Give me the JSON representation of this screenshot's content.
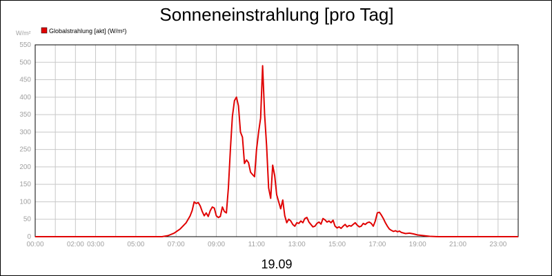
{
  "colors": {
    "series": "#e00000",
    "grid": "#c8c8c8",
    "axis": "#000000",
    "tick_text": "#a0a0a0",
    "title_text": "#000000"
  },
  "chart_data": {
    "type": "line",
    "title": "Sonneneinstrahlung [pro Tag]",
    "subtitle": "19.09",
    "ylabel": "W/m²",
    "xlabel": "",
    "legend": {
      "position": "top-left",
      "entries": [
        "Globalstrahlung [akt] (W/m²)"
      ]
    },
    "grid": true,
    "xlim": [
      0,
      24
    ],
    "ylim": [
      0,
      550
    ],
    "yticks": [
      0,
      50,
      100,
      150,
      200,
      250,
      300,
      350,
      400,
      450,
      500,
      550
    ],
    "xticks": [
      {
        "x": 0,
        "label": "00:00"
      },
      {
        "x": 2,
        "label": "02:00"
      },
      {
        "x": 3,
        "label": "03:00"
      },
      {
        "x": 5,
        "label": "05:00"
      },
      {
        "x": 7,
        "label": "07:00"
      },
      {
        "x": 9,
        "label": "09:00"
      },
      {
        "x": 11,
        "label": "11:00"
      },
      {
        "x": 13,
        "label": "13:00"
      },
      {
        "x": 15,
        "label": "15:00"
      },
      {
        "x": 17,
        "label": "17:00"
      },
      {
        "x": 19,
        "label": "19:00"
      },
      {
        "x": 21,
        "label": "21:00"
      },
      {
        "x": 23,
        "label": "23:00"
      }
    ],
    "series": [
      {
        "name": "Globalstrahlung [akt] (W/m²)",
        "color": "#e00000",
        "points": [
          [
            0.0,
            0
          ],
          [
            6.3,
            0
          ],
          [
            6.6,
            3
          ],
          [
            6.9,
            10
          ],
          [
            7.2,
            22
          ],
          [
            7.5,
            40
          ],
          [
            7.7,
            60
          ],
          [
            7.8,
            75
          ],
          [
            7.9,
            100
          ],
          [
            8.0,
            95
          ],
          [
            8.1,
            98
          ],
          [
            8.2,
            88
          ],
          [
            8.3,
            72
          ],
          [
            8.4,
            60
          ],
          [
            8.5,
            68
          ],
          [
            8.6,
            58
          ],
          [
            8.7,
            75
          ],
          [
            8.8,
            85
          ],
          [
            8.9,
            82
          ],
          [
            9.0,
            60
          ],
          [
            9.1,
            55
          ],
          [
            9.2,
            58
          ],
          [
            9.3,
            85
          ],
          [
            9.4,
            72
          ],
          [
            9.5,
            68
          ],
          [
            9.6,
            140
          ],
          [
            9.7,
            250
          ],
          [
            9.8,
            345
          ],
          [
            9.9,
            390
          ],
          [
            10.0,
            400
          ],
          [
            10.1,
            375
          ],
          [
            10.2,
            300
          ],
          [
            10.3,
            285
          ],
          [
            10.4,
            210
          ],
          [
            10.5,
            220
          ],
          [
            10.6,
            212
          ],
          [
            10.7,
            185
          ],
          [
            10.8,
            178
          ],
          [
            10.9,
            172
          ],
          [
            11.0,
            250
          ],
          [
            11.1,
            300
          ],
          [
            11.2,
            340
          ],
          [
            11.3,
            490
          ],
          [
            11.4,
            350
          ],
          [
            11.5,
            260
          ],
          [
            11.6,
            140
          ],
          [
            11.7,
            110
          ],
          [
            11.8,
            205
          ],
          [
            11.9,
            175
          ],
          [
            12.0,
            120
          ],
          [
            12.1,
            100
          ],
          [
            12.2,
            80
          ],
          [
            12.3,
            105
          ],
          [
            12.4,
            60
          ],
          [
            12.5,
            40
          ],
          [
            12.6,
            50
          ],
          [
            12.7,
            45
          ],
          [
            12.8,
            35
          ],
          [
            12.9,
            30
          ],
          [
            13.0,
            40
          ],
          [
            13.1,
            38
          ],
          [
            13.2,
            45
          ],
          [
            13.3,
            40
          ],
          [
            13.4,
            52
          ],
          [
            13.5,
            55
          ],
          [
            13.6,
            42
          ],
          [
            13.7,
            35
          ],
          [
            13.8,
            28
          ],
          [
            13.9,
            30
          ],
          [
            14.0,
            38
          ],
          [
            14.1,
            42
          ],
          [
            14.2,
            36
          ],
          [
            14.3,
            52
          ],
          [
            14.4,
            48
          ],
          [
            14.5,
            42
          ],
          [
            14.6,
            45
          ],
          [
            14.7,
            40
          ],
          [
            14.8,
            47
          ],
          [
            14.9,
            30
          ],
          [
            15.0,
            25
          ],
          [
            15.1,
            28
          ],
          [
            15.2,
            24
          ],
          [
            15.3,
            30
          ],
          [
            15.4,
            35
          ],
          [
            15.5,
            28
          ],
          [
            15.6,
            32
          ],
          [
            15.7,
            30
          ],
          [
            15.8,
            35
          ],
          [
            15.9,
            40
          ],
          [
            16.0,
            33
          ],
          [
            16.1,
            28
          ],
          [
            16.2,
            30
          ],
          [
            16.3,
            38
          ],
          [
            16.4,
            35
          ],
          [
            16.5,
            40
          ],
          [
            16.6,
            42
          ],
          [
            16.7,
            38
          ],
          [
            16.8,
            30
          ],
          [
            16.9,
            45
          ],
          [
            17.0,
            68
          ],
          [
            17.1,
            70
          ],
          [
            17.2,
            62
          ],
          [
            17.3,
            52
          ],
          [
            17.4,
            40
          ],
          [
            17.5,
            30
          ],
          [
            17.6,
            22
          ],
          [
            17.7,
            18
          ],
          [
            17.8,
            15
          ],
          [
            17.9,
            17
          ],
          [
            18.0,
            14
          ],
          [
            18.1,
            16
          ],
          [
            18.2,
            12
          ],
          [
            18.4,
            9
          ],
          [
            18.6,
            10
          ],
          [
            18.8,
            8
          ],
          [
            19.0,
            5
          ],
          [
            19.3,
            3
          ],
          [
            19.6,
            1
          ],
          [
            20.0,
            0
          ],
          [
            24.0,
            0
          ]
        ]
      }
    ]
  }
}
